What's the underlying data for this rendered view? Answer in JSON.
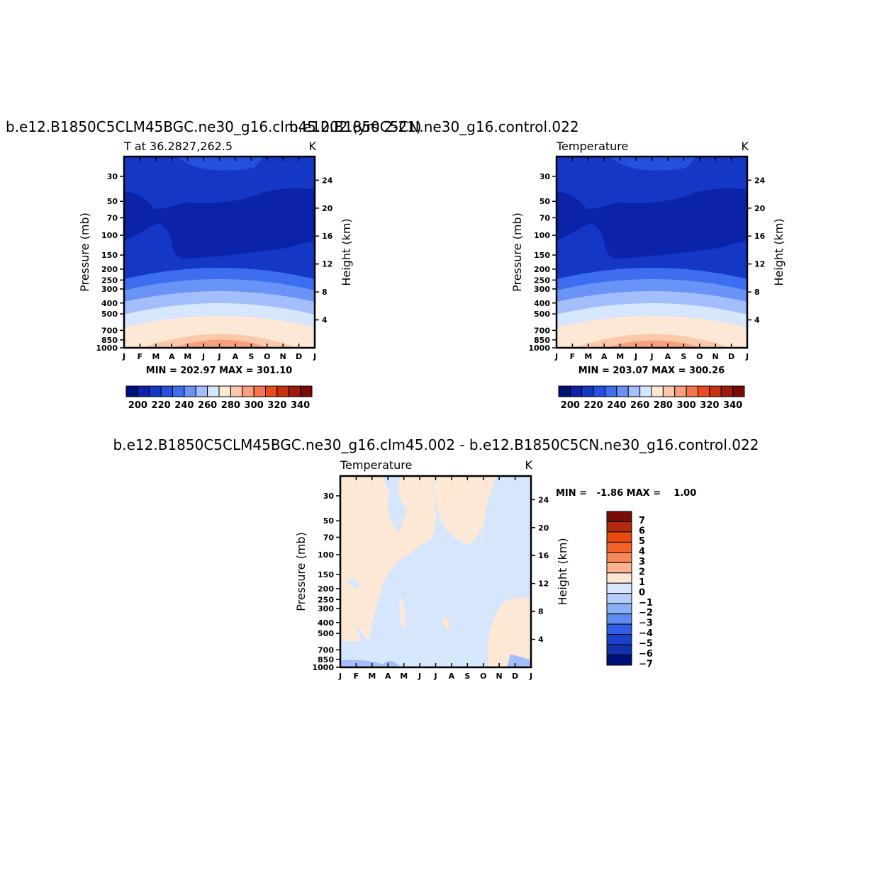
{
  "chart_data": [
    {
      "type": "heatmap",
      "title": "b.e12.B1850C5CLM45BGC.ne30_g16.clm45.002 (yrs 2-21)",
      "subtitle_left": "T at 36.2827,262.5",
      "units": "K",
      "ylabel": "Pressure (mb)",
      "ylabel_right": "Height (km)",
      "x_ticks": [
        "J",
        "F",
        "M",
        "A",
        "M",
        "J",
        "J",
        "A",
        "S",
        "O",
        "N",
        "D",
        "J"
      ],
      "y_ticks": [
        "30",
        "50",
        "70",
        "100",
        "150",
        "200",
        "250",
        "300",
        "400",
        "500",
        "700",
        "850",
        "1000"
      ],
      "y_ticks_right": [
        "24",
        "20",
        "16",
        "12",
        "8",
        "4"
      ],
      "ylim": [
        1000,
        20
      ],
      "y_scale": "log",
      "stats": "MIN = 202.97  MAX = 301.10",
      "min": 202.97,
      "max": 301.1,
      "colorbar_labels": [
        "200",
        "220",
        "240",
        "260",
        "280",
        "300",
        "320",
        "340"
      ]
    },
    {
      "type": "heatmap",
      "title": "b.e12.B1850C5CN.ne30_g16.control.022",
      "subtitle_left": "Temperature",
      "units": "K",
      "ylabel": "Pressure (mb)",
      "ylabel_right": "Height (km)",
      "x_ticks": [
        "J",
        "F",
        "M",
        "A",
        "M",
        "J",
        "J",
        "A",
        "S",
        "O",
        "N",
        "D",
        "J"
      ],
      "y_ticks": [
        "30",
        "50",
        "70",
        "100",
        "150",
        "200",
        "250",
        "300",
        "400",
        "500",
        "700",
        "850",
        "1000"
      ],
      "y_ticks_right": [
        "24",
        "20",
        "16",
        "12",
        "8",
        "4"
      ],
      "ylim": [
        1000,
        20
      ],
      "y_scale": "log",
      "stats": "MIN = 203.07  MAX = 300.26",
      "min": 203.07,
      "max": 300.26,
      "colorbar_labels": [
        "200",
        "220",
        "240",
        "260",
        "280",
        "300",
        "320",
        "340"
      ]
    },
    {
      "type": "heatmap",
      "title": "b.e12.B1850C5CLM45BGC.ne30_g16.clm45.002 - b.e12.B1850C5CN.ne30_g16.control.022",
      "subtitle_left": "Temperature",
      "units": "K",
      "ylabel": "Pressure (mb)",
      "ylabel_right": "Height (km)",
      "x_ticks": [
        "J",
        "F",
        "M",
        "A",
        "M",
        "J",
        "J",
        "A",
        "S",
        "O",
        "N",
        "D",
        "J"
      ],
      "y_ticks": [
        "30",
        "50",
        "70",
        "100",
        "150",
        "200",
        "250",
        "300",
        "400",
        "500",
        "700",
        "850",
        "1000"
      ],
      "y_ticks_right": [
        "24",
        "20",
        "16",
        "12",
        "8",
        "4"
      ],
      "ylim": [
        1000,
        20
      ],
      "y_scale": "log",
      "stats": "MIN =   -1.86 MAX =    1.00",
      "min": -1.86,
      "max": 1.0,
      "colorbar_labels": [
        "7",
        "6",
        "5",
        "4",
        "3",
        "2",
        "1",
        "0",
        "-1",
        "-2",
        "-3",
        "-4",
        "-5",
        "-6",
        "-7"
      ]
    }
  ],
  "colors": {
    "temp_levels": [
      "#00107a",
      "#0a23a8",
      "#1537c6",
      "#2450e0",
      "#3d6ef0",
      "#6a93f7",
      "#a4bdfb",
      "#d5e6fd",
      "#fde8d6",
      "#fbc9aa",
      "#f8a07c",
      "#f6734d",
      "#ec4a1c",
      "#c83212",
      "#9c1c0b",
      "#7a0a06"
    ],
    "diff_levels": [
      "#7a0a06",
      "#b22a0e",
      "#e84a10",
      "#f6632a",
      "#f8875a",
      "#fbb28f",
      "#fde5d2",
      "#d5e6fd",
      "#b5cdfb",
      "#8cb0f7",
      "#5f8bf0",
      "#2f5fe6",
      "#1b42cf",
      "#1230a8",
      "#00107a"
    ]
  }
}
